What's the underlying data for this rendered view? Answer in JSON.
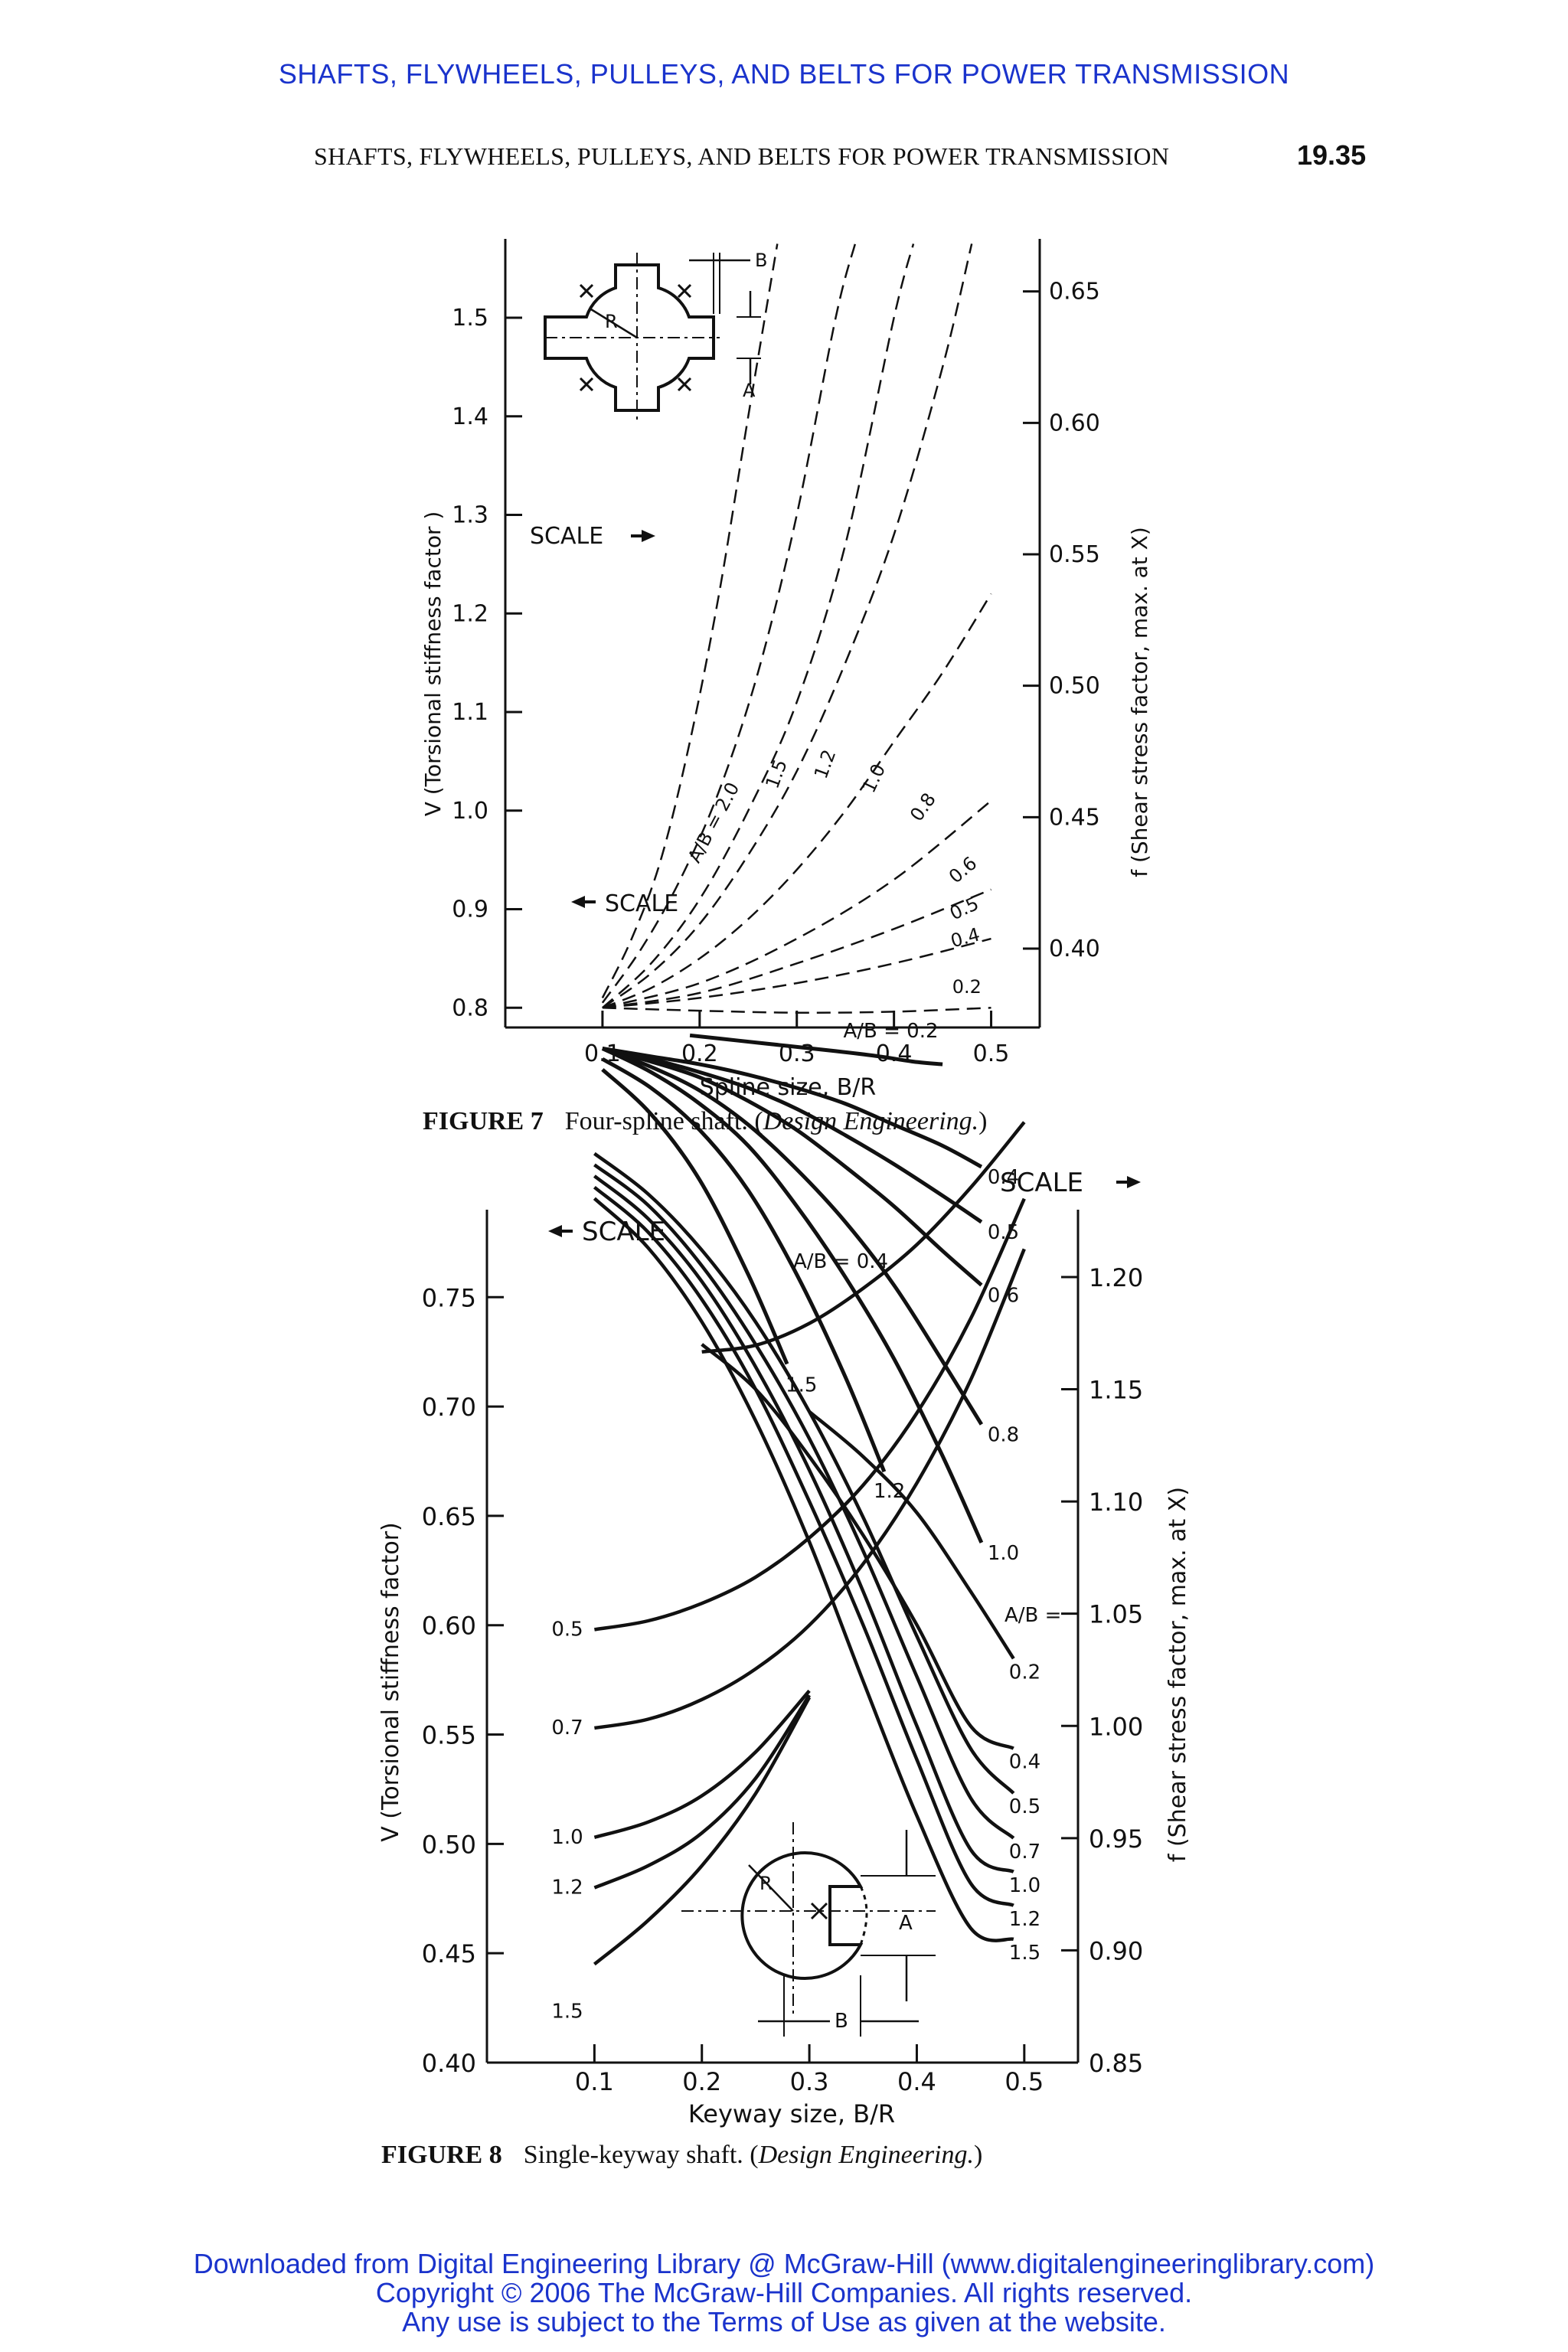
{
  "header": {
    "banner": "SHAFTS, FLYWHEELS, PULLEYS, AND BELTS FOR POWER TRANSMISSION",
    "running_head": "SHAFTS, FLYWHEELS, PULLEYS, AND BELTS FOR POWER TRANSMISSION",
    "page_number": "19.35"
  },
  "figure7": {
    "label": "FIGURE 7",
    "text": "Four-spline shaft. (",
    "source": "Design Engineering.",
    "close": ")"
  },
  "figure8": {
    "label": "FIGURE 8",
    "text": "Single-keyway shaft. (",
    "source": "Design Engineering.",
    "close": ")"
  },
  "footer": {
    "line1": "Downloaded from Digital Engineering Library @ McGraw-Hill (www.digitalengineeringlibrary.com)",
    "line2": "Copyright © 2006 The McGraw-Hill Companies. All rights reserved.",
    "line3": "Any use is subject to the Terms of Use as given at the website."
  },
  "chart_data": [
    {
      "id": "fig7",
      "type": "line",
      "xlabel": "Spline size, B/R",
      "ylabel": "V (Torsional stiffness factor )",
      "y2label": "f (Shear stress factor, max. at X)",
      "x_ticks": [
        "0.1",
        "0.2",
        "0.3",
        "0.4",
        "0.5"
      ],
      "y_ticks": [
        "0.8",
        "0.9",
        "1.0",
        "1.1",
        "1.2",
        "1.3",
        "1.4",
        "1.5"
      ],
      "y2_ticks": [
        "0.40",
        "0.45",
        "0.50",
        "0.55",
        "0.60",
        "0.65"
      ],
      "xlim": [
        0,
        0.55
      ],
      "ylim": [
        0.78,
        1.58
      ],
      "y2lim": [
        0.37,
        0.67
      ],
      "scale_left": "SCALE",
      "scale_right": "SCALE",
      "diagram_labels": {
        "b": "B",
        "r": "R",
        "a": "A"
      },
      "stress_series": [
        {
          "name": "A/B = 0.2",
          "label": "A/B = 0.2",
          "x": [
            0.19,
            0.24,
            0.29,
            0.34,
            0.385,
            0.42,
            0.45
          ],
          "y": [
            0.367,
            0.365,
            0.363,
            0.361,
            0.359,
            0.357,
            0.356
          ]
        },
        {
          "name": "0.4",
          "label": "0.4",
          "x": [
            0.1,
            0.15,
            0.2,
            0.25,
            0.3,
            0.35,
            0.4,
            0.45,
            0.49
          ],
          "y": [
            0.362,
            0.359,
            0.356,
            0.352,
            0.347,
            0.341,
            0.333,
            0.325,
            0.317
          ]
        },
        {
          "name": "0.5",
          "label": "0.5",
          "x": [
            0.1,
            0.15,
            0.2,
            0.25,
            0.3,
            0.35,
            0.4,
            0.45,
            0.49
          ],
          "y": [
            0.362,
            0.358,
            0.353,
            0.347,
            0.339,
            0.329,
            0.318,
            0.306,
            0.296
          ]
        },
        {
          "name": "0.6",
          "label": "0.6",
          "x": [
            0.1,
            0.15,
            0.2,
            0.25,
            0.3,
            0.35,
            0.4,
            0.45,
            0.49
          ],
          "y": [
            0.362,
            0.357,
            0.351,
            0.342,
            0.331,
            0.317,
            0.302,
            0.285,
            0.272
          ]
        },
        {
          "name": "0.8",
          "label": "0.8",
          "x": [
            0.1,
            0.15,
            0.2,
            0.25,
            0.3,
            0.35,
            0.4,
            0.45,
            0.49
          ],
          "y": [
            0.362,
            0.355,
            0.346,
            0.333,
            0.316,
            0.296,
            0.272,
            0.243,
            0.219
          ]
        },
        {
          "name": "1.0",
          "label": "1.0",
          "x": [
            0.1,
            0.15,
            0.2,
            0.25,
            0.3,
            0.35,
            0.4,
            0.45,
            0.49
          ],
          "y": [
            0.362,
            0.353,
            0.341,
            0.325,
            0.302,
            0.275,
            0.244,
            0.207,
            0.174
          ]
        },
        {
          "name": "1.2",
          "label": "1.2",
          "x": [
            0.1,
            0.15,
            0.2,
            0.25,
            0.3,
            0.35,
            0.39
          ],
          "y": [
            0.358,
            0.347,
            0.331,
            0.308,
            0.276,
            0.237,
            0.201
          ]
        },
        {
          "name": "1.5",
          "label": "1.5",
          "x": [
            0.1,
            0.15,
            0.2,
            0.25,
            0.29
          ],
          "y": [
            0.354,
            0.337,
            0.312,
            0.276,
            0.242
          ]
        }
      ],
      "stiffness_series": [
        {
          "name": "A/B = 2.0",
          "label": "A/B = 2.0",
          "x": [
            0.1,
            0.13,
            0.16,
            0.19,
            0.22,
            0.25,
            0.28
          ],
          "y": [
            0.81,
            0.87,
            0.95,
            1.07,
            1.22,
            1.4,
            1.62
          ]
        },
        {
          "name": "1.5",
          "label": "1.5",
          "x": [
            0.1,
            0.14,
            0.18,
            0.22,
            0.26,
            0.3,
            0.34,
            0.36
          ],
          "y": [
            0.805,
            0.86,
            0.93,
            1.02,
            1.14,
            1.3,
            1.5,
            1.62
          ]
        },
        {
          "name": "1.2",
          "label": "1.2",
          "x": [
            0.1,
            0.15,
            0.2,
            0.25,
            0.3,
            0.35,
            0.4,
            0.42
          ],
          "y": [
            0.8,
            0.845,
            0.91,
            1.0,
            1.11,
            1.27,
            1.5,
            1.62
          ]
        },
        {
          "name": "1.0",
          "label": "1.0",
          "x": [
            0.1,
            0.15,
            0.2,
            0.25,
            0.3,
            0.35,
            0.4,
            0.45,
            0.48
          ],
          "y": [
            0.8,
            0.835,
            0.885,
            0.955,
            1.04,
            1.15,
            1.28,
            1.45,
            1.58
          ]
        },
        {
          "name": "0.8",
          "label": "0.8",
          "x": [
            0.1,
            0.15,
            0.2,
            0.25,
            0.3,
            0.35,
            0.4,
            0.45,
            0.5
          ],
          "y": [
            0.8,
            0.82,
            0.85,
            0.89,
            0.94,
            1.0,
            1.07,
            1.14,
            1.22
          ]
        },
        {
          "name": "0.6",
          "label": "0.6",
          "x": [
            0.1,
            0.2,
            0.3,
            0.4,
            0.5
          ],
          "y": [
            0.8,
            0.825,
            0.87,
            0.93,
            1.01
          ]
        },
        {
          "name": "0.5",
          "label": "0.5",
          "x": [
            0.1,
            0.2,
            0.3,
            0.4,
            0.5
          ],
          "y": [
            0.8,
            0.815,
            0.845,
            0.88,
            0.92
          ]
        },
        {
          "name": "0.4",
          "label": "0.4",
          "x": [
            0.1,
            0.2,
            0.3,
            0.4,
            0.5
          ],
          "y": [
            0.8,
            0.81,
            0.825,
            0.845,
            0.87
          ]
        },
        {
          "name": "0.2",
          "label": "0.2",
          "x": [
            0.1,
            0.2,
            0.3,
            0.4,
            0.5
          ],
          "y": [
            0.8,
            0.797,
            0.795,
            0.796,
            0.8
          ]
        }
      ]
    },
    {
      "id": "fig8",
      "type": "line",
      "xlabel": "Keyway size, B/R",
      "ylabel": "V (Torsional stiffness factor)",
      "y2label": "f (Shear stress factor, max. at X)",
      "x_ticks": [
        "0.1",
        "0.2",
        "0.3",
        "0.4",
        "0.5"
      ],
      "y_ticks": [
        "0.40",
        "0.45",
        "0.50",
        "0.55",
        "0.60",
        "0.65",
        "0.70",
        "0.75"
      ],
      "y2_ticks": [
        "0.85",
        "0.90",
        "0.95",
        "1.00",
        "1.05",
        "1.10",
        "1.15",
        "1.20"
      ],
      "xlim": [
        0,
        0.55
      ],
      "ylim": [
        0.4,
        0.79
      ],
      "y2lim": [
        0.85,
        1.23
      ],
      "scale_left": "SCALE",
      "scale_right": "SCALE",
      "diagram_labels": {
        "r": "R",
        "a": "A",
        "b": "B"
      },
      "stiffness_series": [
        {
          "name": "A/B = 0.4",
          "label": "A/B = 0.4",
          "x": [
            0.2,
            0.25,
            0.3,
            0.35,
            0.4,
            0.45,
            0.5
          ],
          "y": [
            0.725,
            0.728,
            0.738,
            0.754,
            0.774,
            0.8,
            0.83
          ]
        },
        {
          "name": "0.5",
          "label": "0.5",
          "x": [
            0.1,
            0.15,
            0.2,
            0.25,
            0.3,
            0.35,
            0.4,
            0.45,
            0.5
          ],
          "y": [
            0.598,
            0.602,
            0.61,
            0.622,
            0.64,
            0.664,
            0.697,
            0.74,
            0.795
          ]
        },
        {
          "name": "0.7",
          "label": "0.7",
          "x": [
            0.1,
            0.15,
            0.2,
            0.25,
            0.3,
            0.35,
            0.4,
            0.45,
            0.5
          ],
          "y": [
            0.553,
            0.557,
            0.566,
            0.58,
            0.6,
            0.628,
            0.665,
            0.712,
            0.772
          ]
        },
        {
          "name": "1.0",
          "label": "1.0",
          "x": [
            0.1,
            0.15,
            0.2,
            0.25,
            0.3
          ],
          "y": [
            0.503,
            0.51,
            0.522,
            0.542,
            0.57
          ]
        },
        {
          "name": "1.2",
          "label": "1.2",
          "x": [
            0.1,
            0.15,
            0.2,
            0.25,
            0.3
          ],
          "y": [
            0.48,
            0.49,
            0.505,
            0.53,
            0.568
          ]
        },
        {
          "name": "1.5",
          "label": "1.5",
          "x": [
            0.1,
            0.15,
            0.2,
            0.25,
            0.3
          ],
          "y": [
            0.445,
            0.465,
            0.49,
            0.523,
            0.567
          ]
        }
      ],
      "stress_series": [
        {
          "name": "A/B = 0.2",
          "label": "0.2",
          "x": [
            0.3,
            0.35,
            0.4,
            0.45,
            0.49
          ],
          "y": [
            1.14,
            1.12,
            1.095,
            1.06,
            1.03
          ]
        },
        {
          "name": "0.4",
          "label": "0.4",
          "x": [
            0.2,
            0.25,
            0.3,
            0.35,
            0.4,
            0.45,
            0.49
          ],
          "y": [
            1.17,
            1.15,
            1.12,
            1.085,
            1.045,
            1.0,
            0.99
          ]
        },
        {
          "name": "0.5",
          "label": "0.5",
          "x": [
            0.1,
            0.15,
            0.2,
            0.25,
            0.3,
            0.35,
            0.4,
            0.45,
            0.49
          ],
          "y": [
            1.255,
            1.237,
            1.212,
            1.18,
            1.14,
            1.093,
            1.04,
            0.99,
            0.97
          ]
        },
        {
          "name": "0.7",
          "label": "0.7",
          "x": [
            0.1,
            0.15,
            0.2,
            0.25,
            0.3,
            0.35,
            0.4,
            0.45,
            0.49
          ],
          "y": [
            1.25,
            1.232,
            1.205,
            1.17,
            1.128,
            1.078,
            1.022,
            0.968,
            0.95
          ]
        },
        {
          "name": "1.0",
          "label": "1.0",
          "x": [
            0.1,
            0.15,
            0.2,
            0.25,
            0.3,
            0.35,
            0.4,
            0.45,
            0.49
          ],
          "y": [
            1.245,
            1.226,
            1.198,
            1.16,
            1.114,
            1.06,
            1.0,
            0.945,
            0.935
          ]
        },
        {
          "name": "1.2",
          "label": "1.2",
          "x": [
            0.1,
            0.15,
            0.2,
            0.25,
            0.3,
            0.35,
            0.4,
            0.45,
            0.49
          ],
          "y": [
            1.24,
            1.22,
            1.19,
            1.15,
            1.1,
            1.045,
            0.985,
            0.93,
            0.92
          ]
        },
        {
          "name": "1.5",
          "label": "1.5",
          "x": [
            0.1,
            0.15,
            0.2,
            0.25,
            0.3,
            0.35,
            0.4,
            0.45,
            0.49
          ],
          "y": [
            1.235,
            1.213,
            1.18,
            1.136,
            1.082,
            1.02,
            0.96,
            0.91,
            0.905
          ]
        }
      ],
      "ab_note": "A/B ="
    }
  ]
}
